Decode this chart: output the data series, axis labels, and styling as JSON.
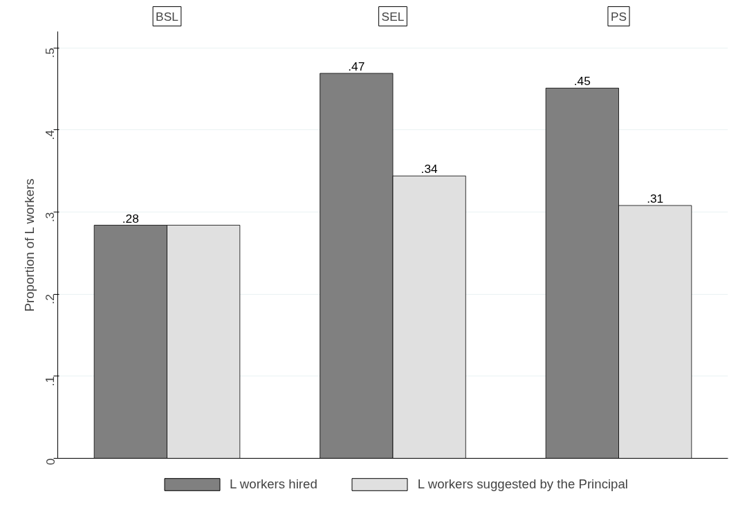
{
  "chart_data": {
    "type": "bar",
    "ylabel": "Proportion of L workers",
    "categories": [
      "BSL",
      "SEL",
      "PS"
    ],
    "series": [
      {
        "name": "L workers hired",
        "color": "#808080",
        "values": [
          0.284,
          0.469,
          0.451
        ],
        "value_labels": [
          ".28",
          ".47",
          ".45"
        ]
      },
      {
        "name": "L workers suggested by the Principal",
        "color": "#e0e0e0",
        "values": [
          0.284,
          0.344,
          0.308
        ],
        "value_labels": [
          null,
          ".34",
          ".31"
        ]
      }
    ],
    "ylim": [
      0,
      0.52
    ],
    "yticks": [
      0,
      {
        "value": 0.1,
        "label": ".1"
      },
      {
        "value": 0.2,
        "label": ".2"
      },
      {
        "value": 0.3,
        "label": ".3"
      },
      {
        "value": 0.4,
        "label": ".4"
      },
      {
        "value": 0.5,
        "label": ".5"
      }
    ],
    "grid": "y",
    "legend": "bottom"
  }
}
